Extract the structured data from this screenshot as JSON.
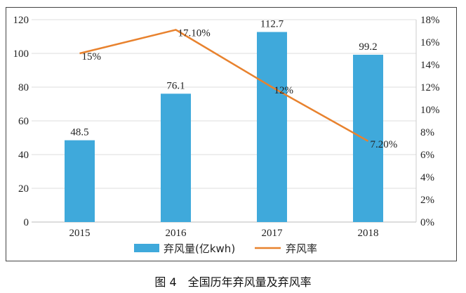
{
  "chart_data": {
    "type": "bar+line",
    "title": "图 4　全国历年弃风量及弃风率",
    "categories": [
      "2015",
      "2016",
      "2017",
      "2018"
    ],
    "series": [
      {
        "name": "弃风量(亿kwh)",
        "type": "bar",
        "axis": "left",
        "values": [
          48.5,
          76.1,
          112.7,
          99.2
        ],
        "labels": [
          "48.5",
          "76.1",
          "112.7",
          "99.2"
        ],
        "color": "#3FA9DB"
      },
      {
        "name": "弃风率",
        "type": "line",
        "axis": "right",
        "values": [
          15,
          17.1,
          12,
          7.2
        ],
        "labels": [
          "15%",
          "17.10%",
          "12%",
          "7.20%"
        ],
        "color": "#E8822E"
      }
    ],
    "left_axis": {
      "ylim": [
        0,
        120
      ],
      "ticks": [
        "0",
        "20",
        "40",
        "60",
        "80",
        "100",
        "120"
      ]
    },
    "right_axis": {
      "ylim": [
        0,
        18
      ],
      "ticks": [
        "0%",
        "2%",
        "4%",
        "6%",
        "8%",
        "10%",
        "12%",
        "14%",
        "16%",
        "18%"
      ]
    },
    "grid": true,
    "legend": "bottom"
  }
}
